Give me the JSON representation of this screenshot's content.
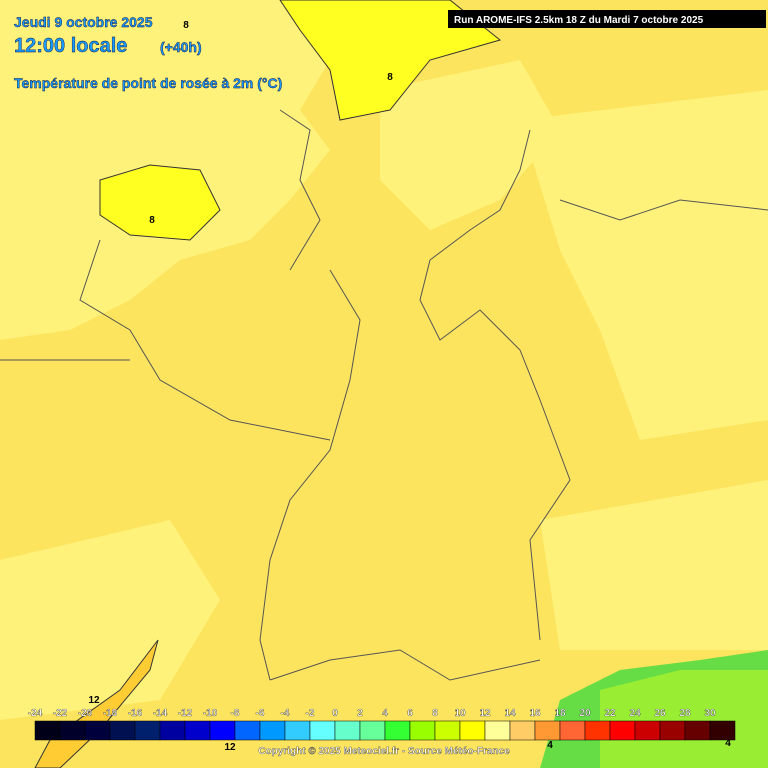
{
  "header": {
    "date": "Jeudi 9 octobre 2025",
    "time": "12:00 locale",
    "lead": "(+40h)",
    "parameter": "Température de point de rosée à 2m (°C)"
  },
  "run": "Run AROME-IFS 2.5km 18 Z du Mardi 7 octobre 2025",
  "contour_labels": [
    "8",
    "8",
    "8",
    "12",
    "12",
    "4",
    "4"
  ],
  "legend": {
    "labels": [
      -24,
      -22,
      -20,
      -18,
      -16,
      -14,
      -12,
      -10,
      -8,
      -6,
      -4,
      -2,
      0,
      2,
      4,
      6,
      8,
      10,
      12,
      14,
      16,
      18,
      20,
      22,
      24,
      26,
      28,
      30
    ],
    "colors": [
      "#000018",
      "#00002a",
      "#00003c",
      "#001050",
      "#00206e",
      "#0000a0",
      "#0000cc",
      "#0000ff",
      "#0066ff",
      "#0099ff",
      "#33ccff",
      "#66ffff",
      "#66ffcc",
      "#66ff99",
      "#33ff33",
      "#99ff00",
      "#ccff00",
      "#ffff00",
      "#ffff99",
      "#ffcc66",
      "#ff9933",
      "#ff6633",
      "#ff3300",
      "#ff0000",
      "#cc0000",
      "#990000",
      "#660000",
      "#330000"
    ]
  },
  "copyright": "Copyright © 2025 Meteociel.fr - Source Météo-France"
}
